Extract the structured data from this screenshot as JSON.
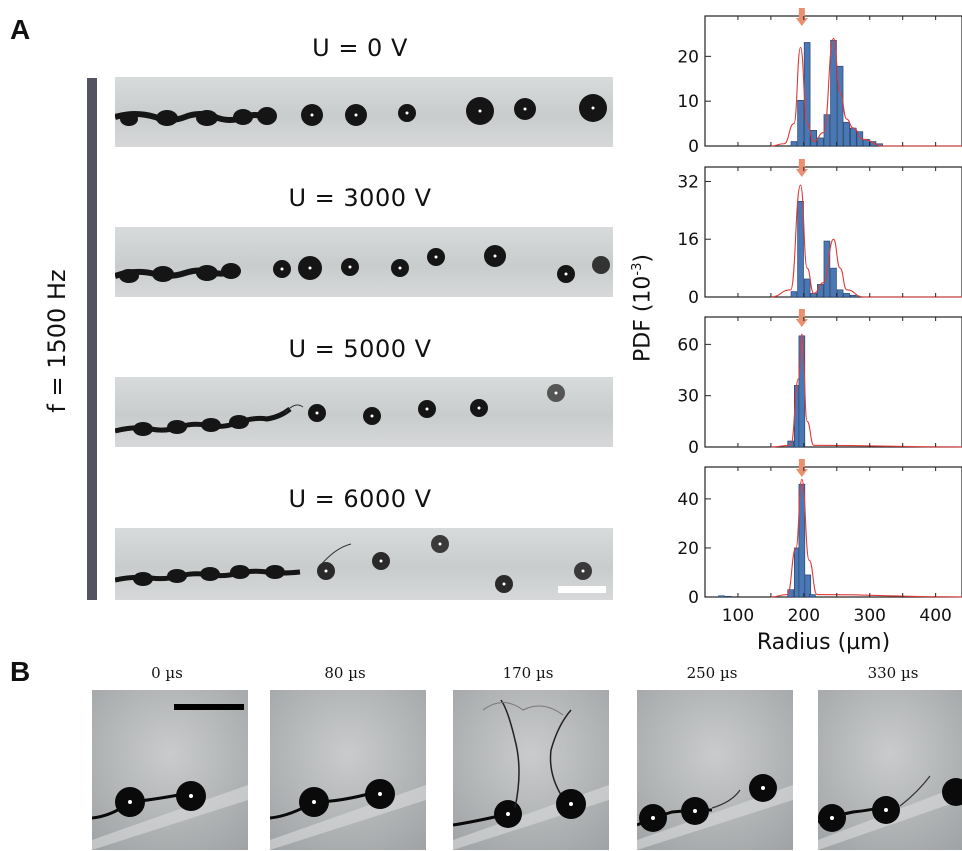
{
  "panels": {
    "a": {
      "label": "A",
      "frequency_label": "f = 1500 Hz",
      "voltage_labels": [
        "U = 0 V",
        "U = 3000 V",
        "U = 5000 V",
        "U = 6000 V"
      ]
    },
    "b": {
      "label": "B",
      "time_labels": [
        "0 µs",
        "80 µs",
        "170 µs",
        "250 µs",
        "330 µs"
      ]
    }
  },
  "colors": {
    "bar": "#4a78b4",
    "bar_edge": "#1f3d66",
    "fit": "#e03a3a",
    "arrow": "#e89070",
    "side_bar": "#545460",
    "strip_bg": "#cfd2d3",
    "droplet": "#151515"
  },
  "chart_data": [
    {
      "type": "bar",
      "x": [
        185,
        195,
        205,
        215,
        225,
        235,
        245,
        255,
        265,
        275,
        285,
        295,
        305,
        315
      ],
      "values": [
        1.0,
        10.2,
        23.1,
        3.5,
        1.8,
        7.0,
        23.6,
        17.8,
        5.3,
        4.0,
        3.2,
        1.5,
        1.0,
        0.5
      ],
      "fit": [
        [
          150,
          0
        ],
        [
          170,
          0.5
        ],
        [
          185,
          5
        ],
        [
          195,
          22
        ],
        [
          205,
          5
        ],
        [
          215,
          1
        ],
        [
          230,
          3
        ],
        [
          245,
          24
        ],
        [
          255,
          12
        ],
        [
          265,
          6
        ],
        [
          275,
          4
        ],
        [
          290,
          1.5
        ],
        [
          320,
          0
        ],
        [
          440,
          0
        ]
      ],
      "ylim": [
        0,
        29
      ],
      "yticks": [
        0,
        10,
        20
      ],
      "xlim": [
        50,
        440
      ],
      "arrow_x": 197
    },
    {
      "type": "bar",
      "x": [
        185,
        195,
        205,
        215,
        225,
        235,
        245,
        255,
        265,
        275
      ],
      "values": [
        1.5,
        26.5,
        5.0,
        1.0,
        3.5,
        15.5,
        8.0,
        2.0,
        1.0,
        0.5
      ],
      "fit": [
        [
          150,
          0
        ],
        [
          180,
          2
        ],
        [
          195,
          31
        ],
        [
          205,
          8
        ],
        [
          215,
          1
        ],
        [
          230,
          4
        ],
        [
          245,
          16
        ],
        [
          255,
          8
        ],
        [
          265,
          2
        ],
        [
          290,
          0
        ],
        [
          440,
          0
        ]
      ],
      "ylim": [
        0,
        36
      ],
      "yticks": [
        0,
        16,
        32
      ],
      "xlim": [
        50,
        440
      ],
      "arrow_x": 197
    },
    {
      "type": "bar",
      "x": [
        185,
        195
      ],
      "values": [
        3.5,
        36.0
      ],
      "values2": [
        65.0
      ],
      "fit": [
        [
          150,
          0
        ],
        [
          180,
          1
        ],
        [
          192,
          40
        ],
        [
          197,
          66
        ],
        [
          205,
          15
        ],
        [
          215,
          1
        ],
        [
          440,
          0
        ]
      ],
      "bars": [
        [
          180,
          3.5
        ],
        [
          190,
          36.0
        ],
        [
          197,
          65.0
        ]
      ],
      "ylim": [
        0,
        76
      ],
      "yticks": [
        0,
        30,
        60
      ],
      "xlim": [
        50,
        440
      ],
      "arrow_x": 197
    },
    {
      "type": "bar",
      "bars": [
        [
          180,
          3.0
        ],
        [
          190,
          20.0
        ],
        [
          197,
          46.0
        ],
        [
          206,
          9.0
        ],
        [
          213,
          1.0
        ],
        [
          75,
          0.5
        ],
        [
          85,
          0.3
        ]
      ],
      "fit": [
        [
          150,
          0
        ],
        [
          175,
          1
        ],
        [
          188,
          20
        ],
        [
          197,
          48
        ],
        [
          208,
          15
        ],
        [
          220,
          1
        ],
        [
          440,
          0
        ]
      ],
      "ylim": [
        0,
        53
      ],
      "yticks": [
        0,
        20,
        40
      ],
      "xticks": [
        100,
        200,
        300,
        400
      ],
      "xlim": [
        50,
        440
      ],
      "arrow_x": 197,
      "xlabel": "Radius (µm)"
    }
  ],
  "shared_ylabel": "PDF (10",
  "shared_ylabel_sup": "-3",
  "shared_ylabel_end": ")"
}
